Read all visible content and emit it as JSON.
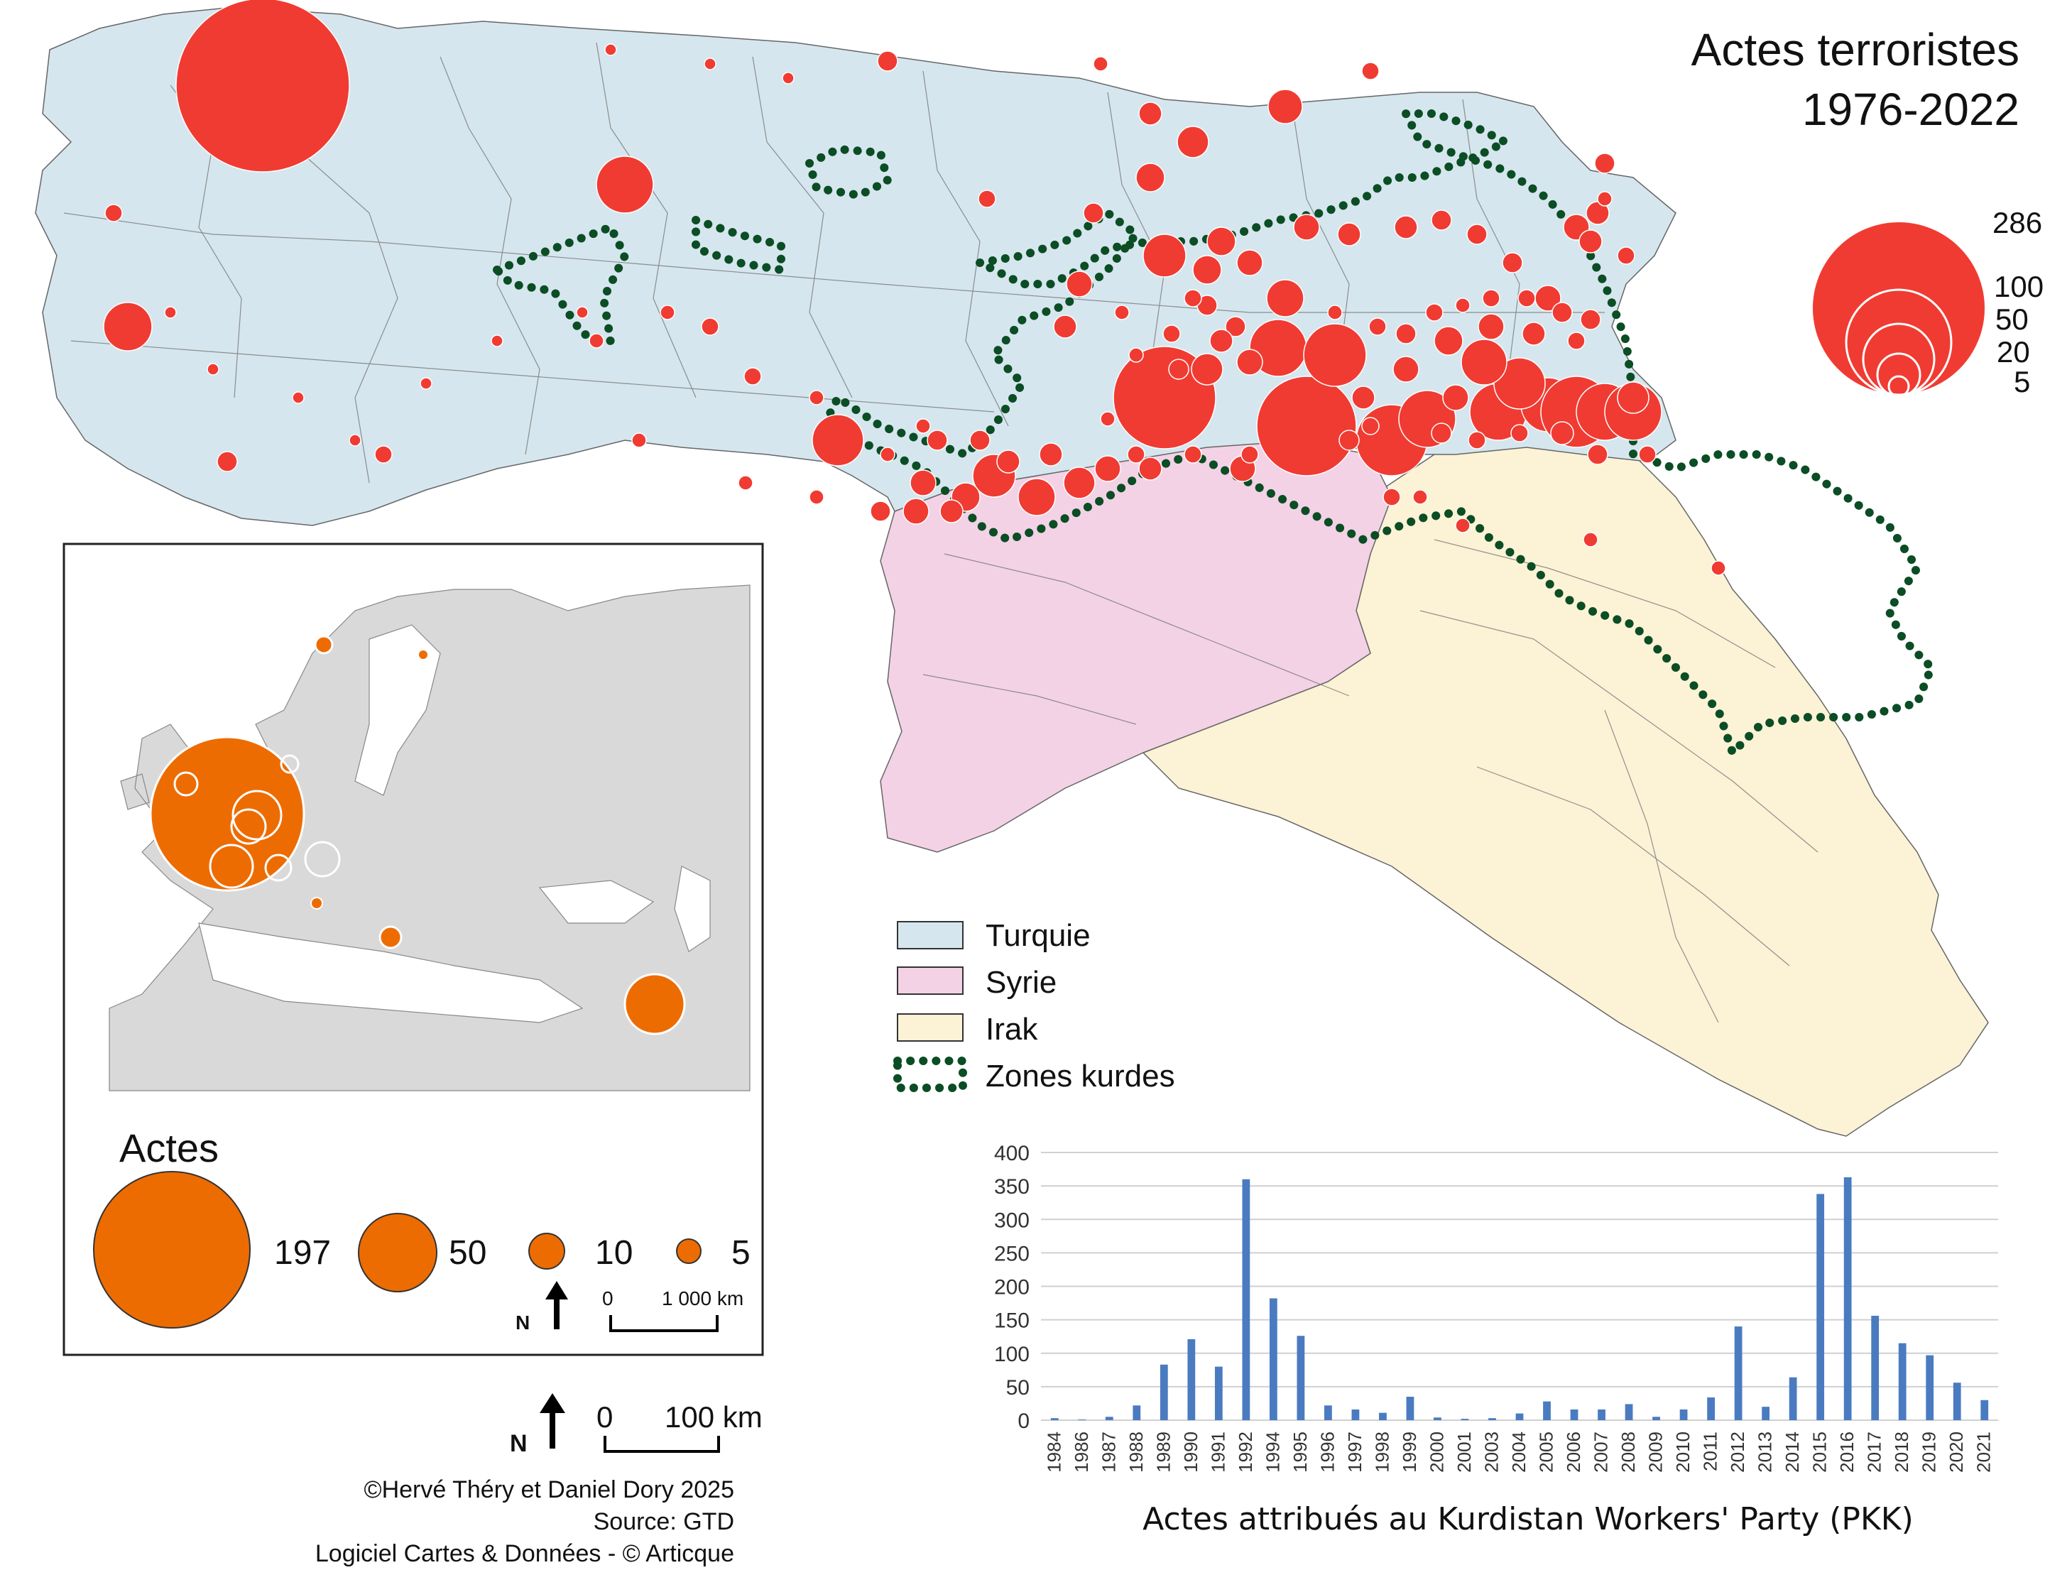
{
  "map": {
    "title_line1": "Actes terroristes",
    "title_line2": "1976-2022",
    "size_legend": {
      "values": [
        "286",
        "100",
        "50",
        "20",
        "5"
      ]
    },
    "country_legend": [
      {
        "label": "Turquie",
        "color": "#d6e6ee"
      },
      {
        "label": "Syrie",
        "color": "#f3d2e6"
      },
      {
        "label": "Irak",
        "color": "#fcf2d6"
      },
      {
        "label": "Zones kurdes",
        "color": "#0b4d24"
      }
    ],
    "scale": {
      "north": "N",
      "zero": "0",
      "distance": "100 km"
    },
    "symbol_color": "#f03b32"
  },
  "inset": {
    "legend_title": "Actes",
    "legend_values": [
      "197",
      "50",
      "10",
      "5"
    ],
    "scale": {
      "north": "N",
      "zero": "0",
      "distance": "1 000 km"
    },
    "symbol_color": "#ed6c02"
  },
  "credits": {
    "line1": "©Hervé Théry et Daniel Dory 2025",
    "line2": "Source: GTD",
    "line3": "Logiciel Cartes & Données - © Articque"
  },
  "chart_data": {
    "type": "bar",
    "title": "Actes attribués au Kurdistan Workers' Party (PKK)",
    "categories": [
      "1984",
      "1986",
      "1987",
      "1988",
      "1989",
      "1990",
      "1991",
      "1992",
      "1994",
      "1995",
      "1996",
      "1997",
      "1998",
      "1999",
      "2000",
      "2001",
      "2003",
      "2004",
      "2005",
      "2006",
      "2007",
      "2008",
      "2009",
      "2010",
      "2011",
      "2012",
      "2013",
      "2014",
      "2015",
      "2016",
      "2017",
      "2018",
      "2019",
      "2020",
      "2021"
    ],
    "values": [
      3,
      1,
      5,
      22,
      83,
      121,
      80,
      360,
      182,
      126,
      22,
      16,
      11,
      35,
      4,
      2,
      3,
      10,
      28,
      16,
      16,
      24,
      5,
      16,
      34,
      140,
      20,
      64,
      338,
      363,
      156,
      115,
      97,
      56,
      30
    ],
    "ylim": [
      0,
      400
    ],
    "yticks": [
      0,
      50,
      100,
      150,
      200,
      250,
      300,
      350,
      400
    ],
    "bar_color": "#4a7bc0",
    "grid": true
  }
}
